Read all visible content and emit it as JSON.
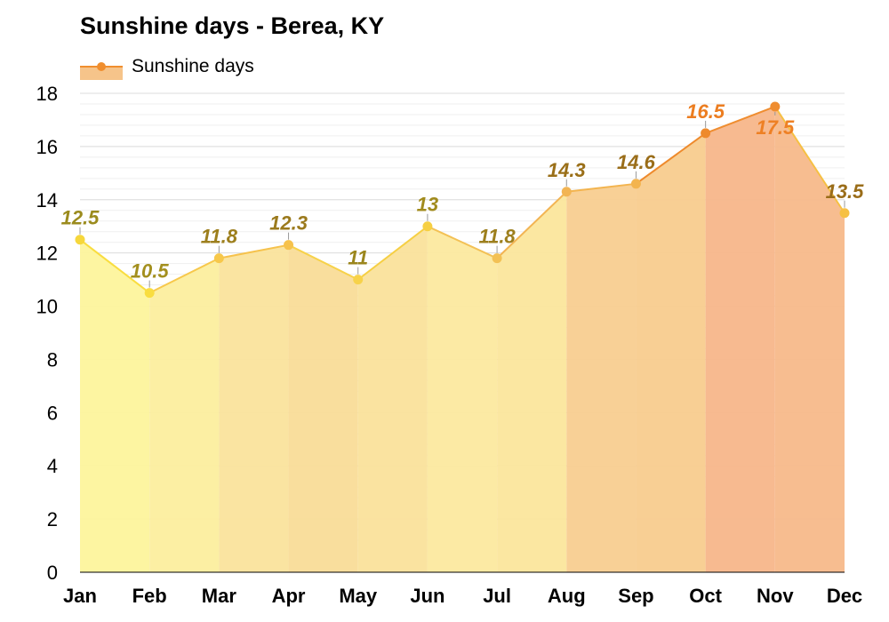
{
  "title": "Sunshine days - Berea, KY",
  "legend": {
    "label": "Sunshine days",
    "position": "top-left"
  },
  "chart_data": {
    "type": "area",
    "title": "Sunshine days - Berea, KY",
    "xlabel": "",
    "ylabel": "",
    "categories": [
      "Jan",
      "Feb",
      "Mar",
      "Apr",
      "May",
      "Jun",
      "Jul",
      "Aug",
      "Sep",
      "Oct",
      "Nov",
      "Dec"
    ],
    "series": [
      {
        "name": "Sunshine days",
        "values": [
          12.5,
          10.5,
          11.8,
          12.3,
          11,
          13,
          11.8,
          14.3,
          14.6,
          16.5,
          17.5,
          13.5
        ],
        "data_labels": [
          "12.5",
          "10.5",
          "11.8",
          "12.3",
          "11",
          "13",
          "11.8",
          "14.3",
          "14.6",
          "16.5",
          "17.5",
          "13.5"
        ]
      }
    ],
    "ylim": [
      0,
      18
    ],
    "yticks": [
      0,
      2,
      4,
      6,
      8,
      10,
      12,
      14,
      16,
      18
    ],
    "grid": true
  },
  "colors": {
    "fills": [
      "#fdf49c",
      "#fcee9e",
      "#fae39c",
      "#f9dc98",
      "#fae19b",
      "#fce99f",
      "#fbe69c",
      "#f8ce90",
      "#f8cc8e",
      "#f7b68a",
      "#f7b98a",
      "#f9db97"
    ],
    "lines": [
      "#f6d73c",
      "#f9dd3f",
      "#f7c84b",
      "#f6c24c",
      "#f7d24a",
      "#f6cf43",
      "#f3c155",
      "#f2b453",
      "#f3b44f",
      "#ee8a2c",
      "#ef8d30",
      "#f6c043"
    ],
    "labels": [
      "#9b8b1d",
      "#a38f1e",
      "#9d7f1d",
      "#9b7a1d",
      "#9b861d",
      "#a18b1d",
      "#9d7f1d",
      "#9a6f18",
      "#9a6d19",
      "#ec7d20",
      "#ee8024",
      "#9a6d19"
    ],
    "grid": "#dddddd",
    "grid_minor": "#efefef",
    "axis": "#000000"
  }
}
